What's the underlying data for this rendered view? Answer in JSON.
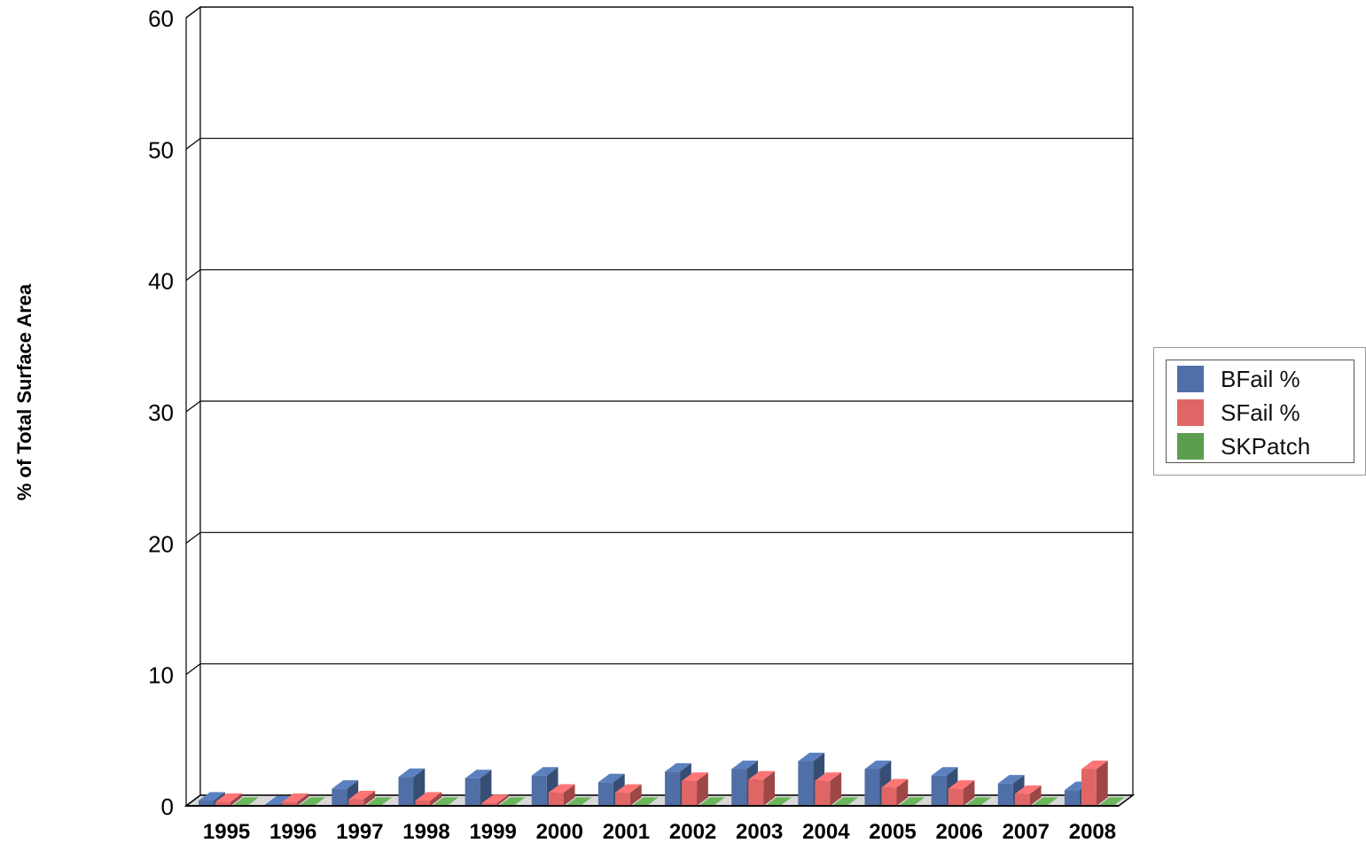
{
  "chart_data": {
    "type": "bar",
    "ylabel": "% of Total Surface Area",
    "xlabel": "",
    "title": "",
    "ylim": [
      0,
      60
    ],
    "yticks": [
      0,
      10,
      20,
      30,
      40,
      50,
      60
    ],
    "grid": true,
    "legend_position": "right",
    "categories": [
      "1995",
      "1996",
      "1997",
      "1998",
      "1999",
      "2000",
      "2001",
      "2002",
      "2003",
      "2004",
      "2005",
      "2006",
      "2007",
      "2008"
    ],
    "series": [
      {
        "name": "BFail %",
        "color": "#4f6fa6",
        "values": [
          0.4,
          0.1,
          1.3,
          2.2,
          2.1,
          2.3,
          1.8,
          2.6,
          2.8,
          3.4,
          2.8,
          2.3,
          1.7,
          1.2
        ]
      },
      {
        "name": "SFail %",
        "color": "#e06666",
        "values": [
          0.3,
          0.3,
          0.5,
          0.4,
          0.2,
          1.0,
          1.0,
          1.9,
          2.0,
          1.9,
          1.4,
          1.3,
          0.9,
          2.8
        ]
      },
      {
        "name": "SKPatch",
        "color": "#5c9e4e",
        "values": [
          0,
          0,
          0,
          0,
          0,
          0,
          0,
          0,
          0,
          0,
          0,
          0,
          0,
          0
        ]
      }
    ]
  }
}
